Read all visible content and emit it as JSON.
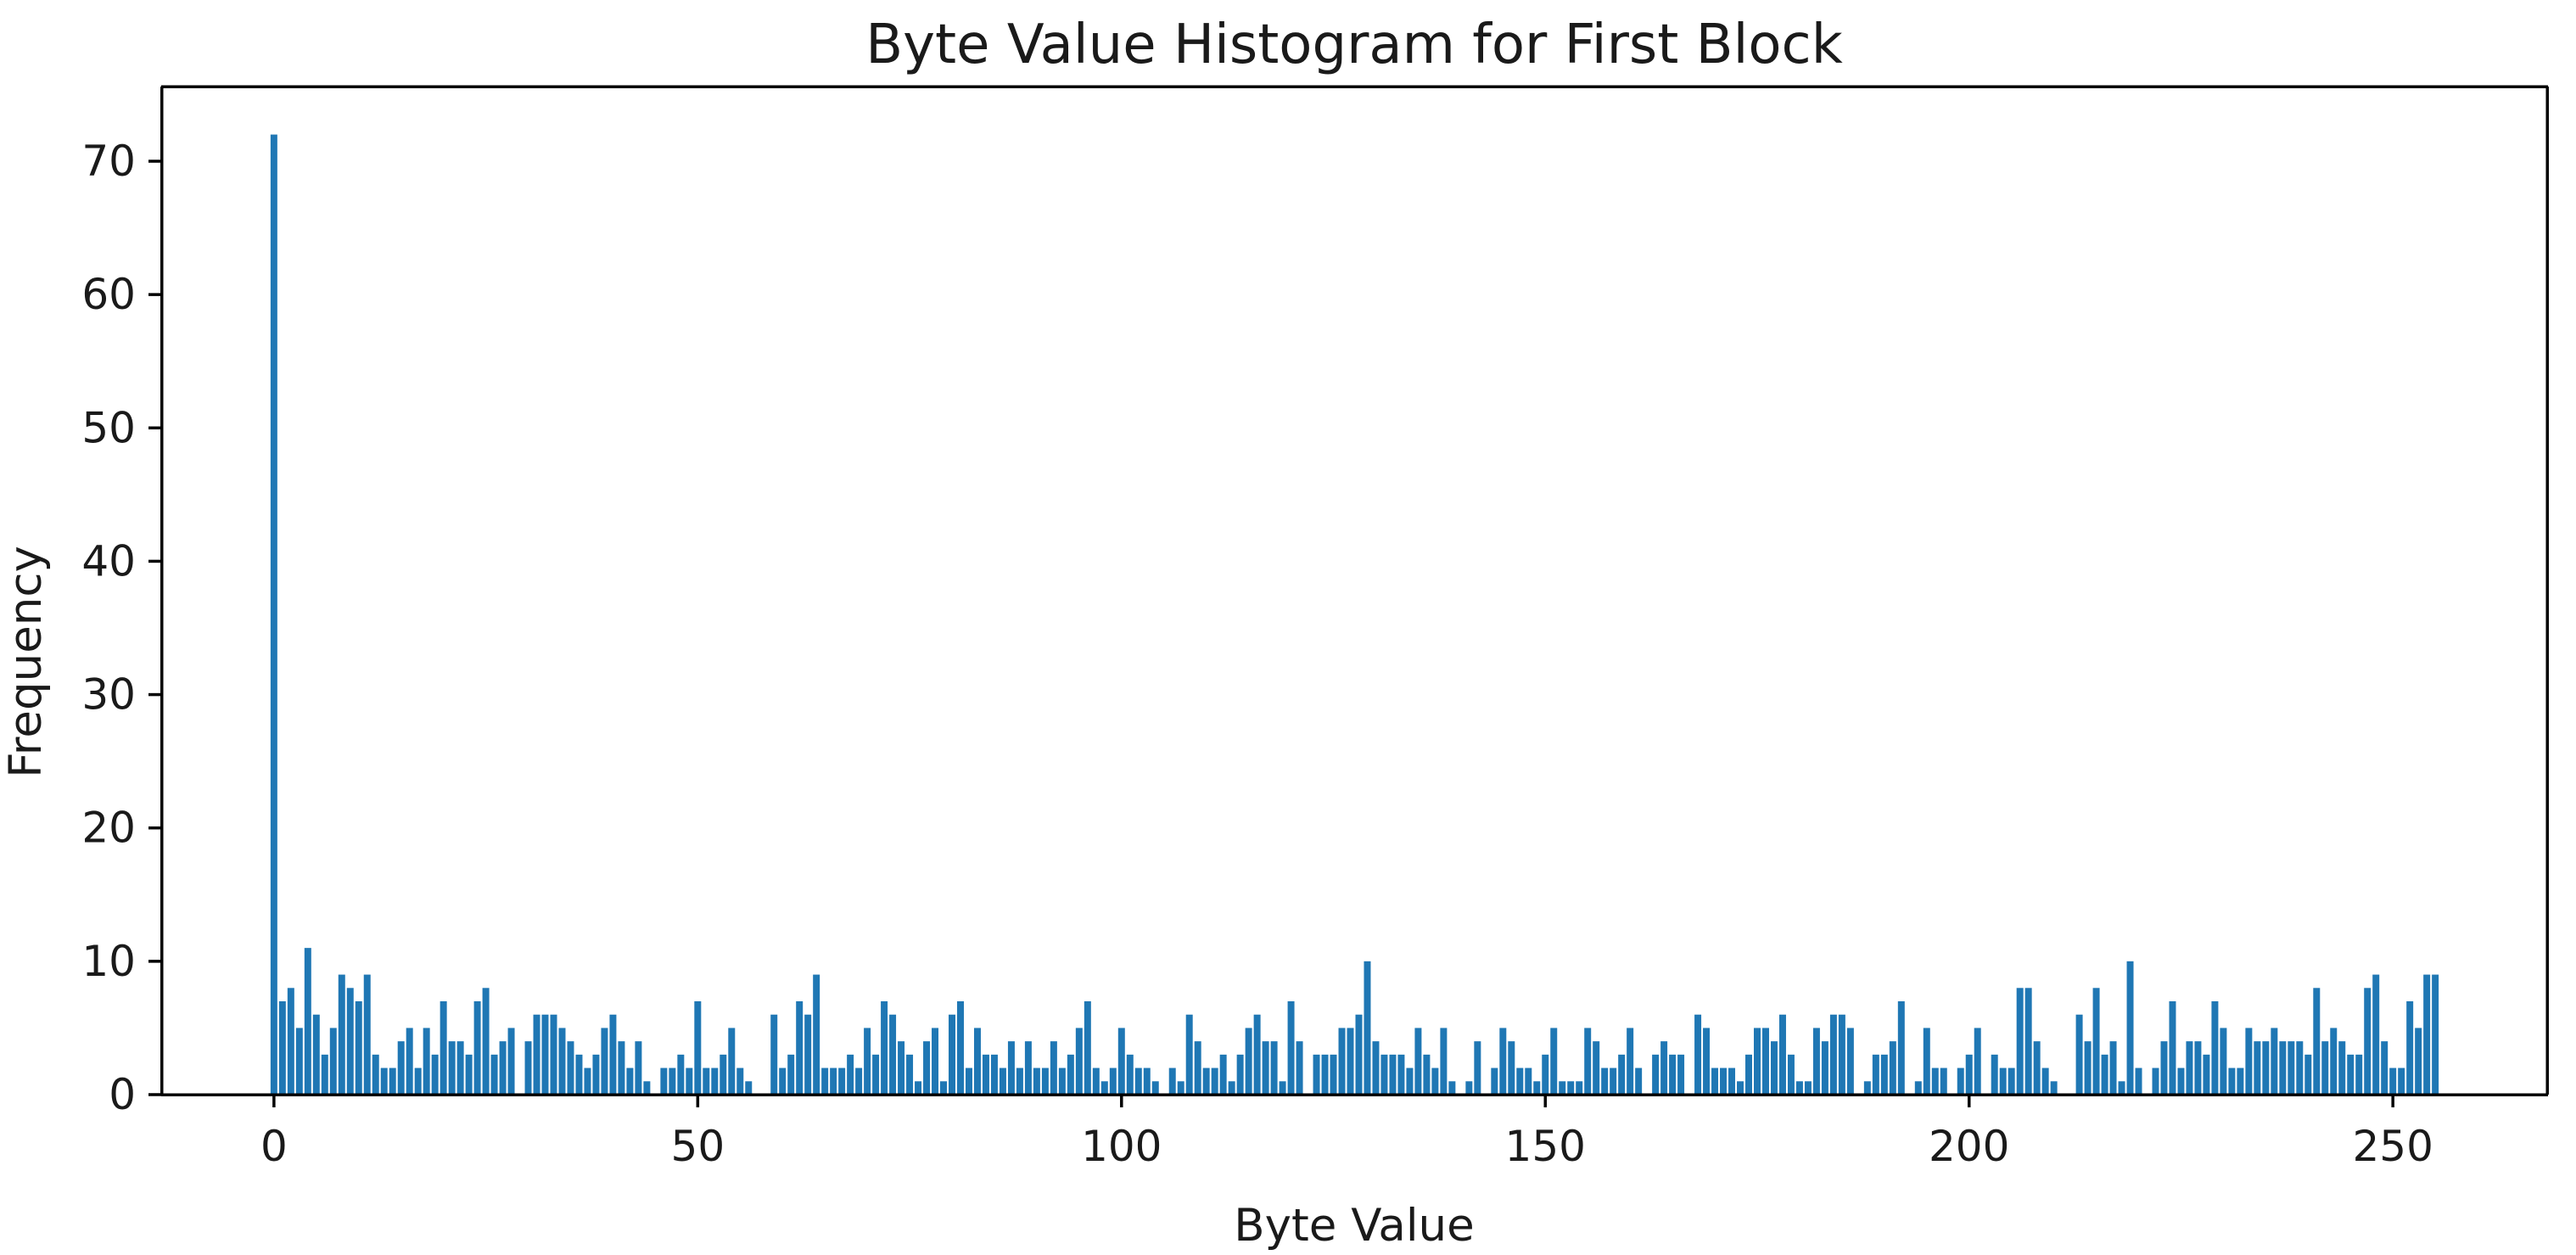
{
  "page": {
    "background": "#ffffff"
  },
  "chart_data": {
    "type": "bar",
    "title": "Byte Value Histogram for First Block",
    "xlabel": "Byte Value",
    "ylabel": "Frequency",
    "bar_color": "#1f77b4",
    "axis_color": "#000000",
    "text_color": "#1a1a1a",
    "grid": false,
    "legend": null,
    "xticks": [
      0,
      50,
      100,
      150,
      200,
      250
    ],
    "yticks": [
      0,
      10,
      20,
      30,
      40,
      50,
      60,
      70
    ],
    "xlim": [
      -13.3,
      268.3
    ],
    "ylim": [
      0,
      75.6
    ],
    "x_start": 0,
    "categories_note": "x = byte value 0..255, one bar per value",
    "values": [
      72,
      7,
      8,
      5,
      11,
      6,
      3,
      5,
      9,
      8,
      7,
      9,
      3,
      2,
      2,
      4,
      5,
      2,
      5,
      3,
      7,
      4,
      4,
      3,
      7,
      8,
      3,
      4,
      5,
      0,
      4,
      6,
      6,
      6,
      5,
      4,
      3,
      2,
      3,
      5,
      6,
      4,
      2,
      4,
      1,
      0,
      2,
      2,
      3,
      2,
      7,
      2,
      2,
      3,
      5,
      2,
      1,
      0,
      0,
      6,
      2,
      3,
      7,
      6,
      9,
      2,
      2,
      2,
      3,
      2,
      5,
      3,
      7,
      6,
      4,
      3,
      1,
      4,
      5,
      1,
      6,
      7,
      2,
      5,
      3,
      3,
      2,
      4,
      2,
      4,
      2,
      2,
      4,
      2,
      3,
      5,
      7,
      2,
      1,
      2,
      5,
      3,
      2,
      2,
      1,
      0,
      2,
      1,
      6,
      4,
      2,
      2,
      3,
      1,
      3,
      5,
      6,
      4,
      4,
      1,
      7,
      4,
      0,
      3,
      3,
      3,
      5,
      5,
      6,
      10,
      4,
      3,
      3,
      3,
      2,
      5,
      3,
      2,
      5,
      1,
      0,
      1,
      4,
      0,
      2,
      5,
      4,
      2,
      2,
      1,
      3,
      5,
      1,
      1,
      1,
      5,
      4,
      2,
      2,
      3,
      5,
      2,
      0,
      3,
      4,
      3,
      3,
      0,
      6,
      5,
      2,
      2,
      2,
      1,
      3,
      5,
      5,
      4,
      6,
      3,
      1,
      1,
      5,
      4,
      6,
      6,
      5,
      0,
      1,
      3,
      3,
      4,
      7,
      0,
      1,
      5,
      2,
      2,
      0,
      2,
      3,
      5,
      0,
      3,
      2,
      2,
      8,
      8,
      4,
      2,
      1,
      0,
      0,
      6,
      4,
      8,
      3,
      4,
      1,
      10,
      2,
      0,
      2,
      4,
      7,
      2,
      4,
      4,
      3,
      7,
      5,
      2,
      2,
      5,
      4,
      4,
      5,
      4,
      4,
      4,
      3,
      8,
      4,
      5,
      4,
      3,
      3,
      8,
      9,
      4,
      2,
      2,
      7,
      5,
      9,
      9
    ]
  }
}
